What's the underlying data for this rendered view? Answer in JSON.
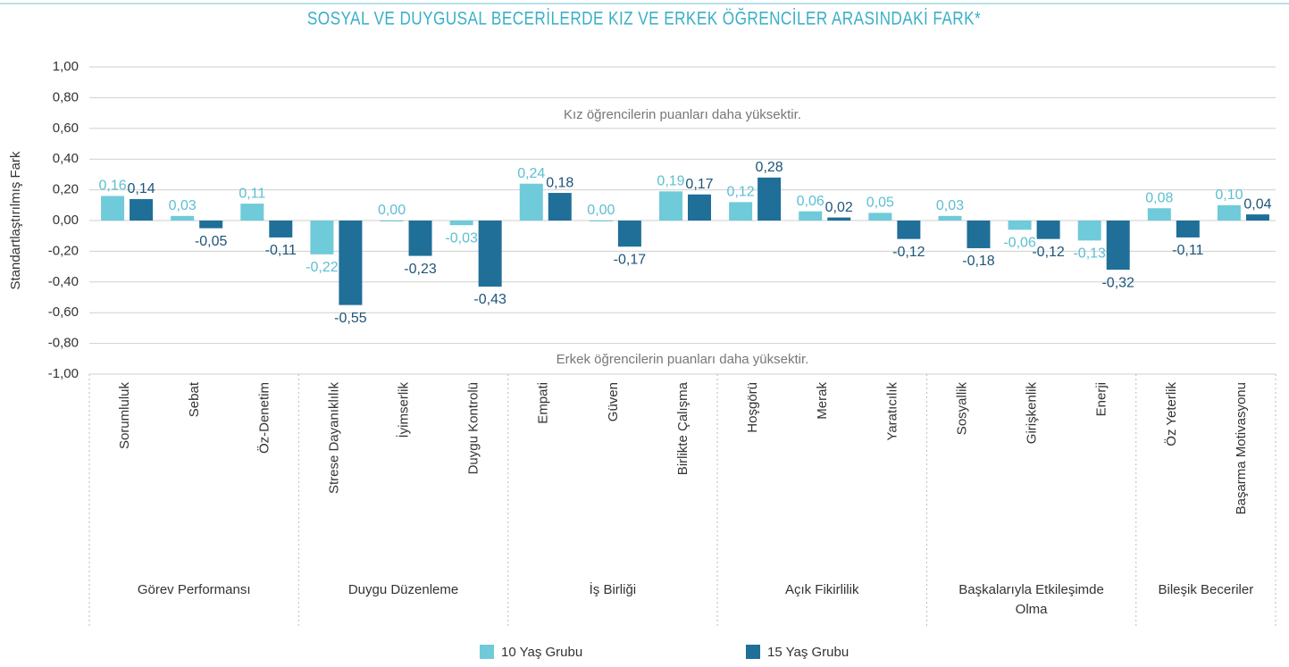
{
  "chart_data": {
    "type": "bar",
    "title": "SOSYAL VE DUYGUSAL BECERİLERDE KIZ VE ERKEK ÖĞRENCİLER ARASINDAKİ FARK*",
    "y_label": "Standartlaştırılmış Fark",
    "annotations": [
      "Kız öğrencilerin puanları daha yüksektir.",
      "Erkek öğrencilerin puanları daha yüksektir."
    ],
    "categories": [
      "Sorumluluk",
      "Sebat",
      "Öz-Denetim",
      "Strese Dayanıklılık",
      "İyimserlik",
      "Duygu Kontrolü",
      "Empati",
      "Güven",
      "Birlikte Çalışma",
      "Hoşgörü",
      "Merak",
      "Yaratıcılık",
      "Sosyallik",
      "Girişkenlik",
      "Enerji",
      "Öz Yeterlik",
      "Başarma Motivasyonu"
    ],
    "groups": [
      {
        "name": "Görev Performansı",
        "members": [
          "Sorumluluk",
          "Sebat",
          "Öz-Denetim"
        ]
      },
      {
        "name": "Duygu Düzenleme",
        "members": [
          "Strese Dayanıklılık",
          "İyimserlik",
          "Duygu Kontrolü"
        ]
      },
      {
        "name": "İş Birliği",
        "members": [
          "Empati",
          "Güven",
          "Birlikte Çalışma"
        ]
      },
      {
        "name": "Açık Fikirlilik",
        "members": [
          "Hoşgörü",
          "Merak",
          "Yaratıcılık"
        ]
      },
      {
        "name": "Başkalarıyla Etkileşimde Olma",
        "members": [
          "Sosyallik",
          "Girişkenlik",
          "Enerji"
        ]
      },
      {
        "name": "Bileşik Beceriler",
        "members": [
          "Öz Yeterlik",
          "Başarma Motivasyonu"
        ]
      }
    ],
    "series": [
      {
        "name": "10 Yaş Grubu",
        "color": "#6fcad9",
        "values": [
          0.16,
          0.03,
          0.11,
          -0.22,
          0.0,
          -0.03,
          0.24,
          0.0,
          0.19,
          0.12,
          0.06,
          0.05,
          0.03,
          -0.06,
          -0.13,
          0.08,
          0.1
        ],
        "value_labels": [
          "0,16",
          "0,03",
          "0,11",
          "-0,22",
          "0,00",
          "-0,03",
          "0,24",
          "0,00",
          "0,19",
          "0,12",
          "0,06",
          "0,05",
          "0,03",
          "-0,06",
          "-0,13",
          "0,08",
          "0,10"
        ]
      },
      {
        "name": "15 Yaş Grubu",
        "color": "#1f6f99",
        "values": [
          0.14,
          -0.05,
          -0.11,
          -0.55,
          -0.23,
          -0.43,
          0.18,
          -0.17,
          0.17,
          0.28,
          0.02,
          -0.12,
          -0.18,
          -0.12,
          -0.32,
          -0.11,
          0.04
        ],
        "value_labels": [
          "0,14",
          "-0,05",
          "-0,11",
          "-0,55",
          "-0,23",
          "-0,43",
          "0,18",
          "-0,17",
          "0,17",
          "0,28",
          "0,02",
          "-0,12",
          "-0,18",
          "-0,12",
          "-0,32",
          "-0,11",
          "0,04"
        ]
      }
    ],
    "ylim": [
      -1,
      1
    ],
    "yticks": [
      {
        "value": -1,
        "label": "-1,00"
      },
      {
        "value": -0.8,
        "label": "-0,80"
      },
      {
        "value": -0.6,
        "label": "-0,60"
      },
      {
        "value": -0.4,
        "label": "-0,40"
      },
      {
        "value": -0.2,
        "label": "-0,20"
      },
      {
        "value": 0,
        "label": "0,00"
      },
      {
        "value": 0.2,
        "label": "0,20"
      },
      {
        "value": 0.4,
        "label": "0,40"
      },
      {
        "value": 0.6,
        "label": "0,60"
      },
      {
        "value": 0.8,
        "label": "0,80"
      },
      {
        "value": 1,
        "label": "1,00"
      }
    ],
    "grid": true
  }
}
